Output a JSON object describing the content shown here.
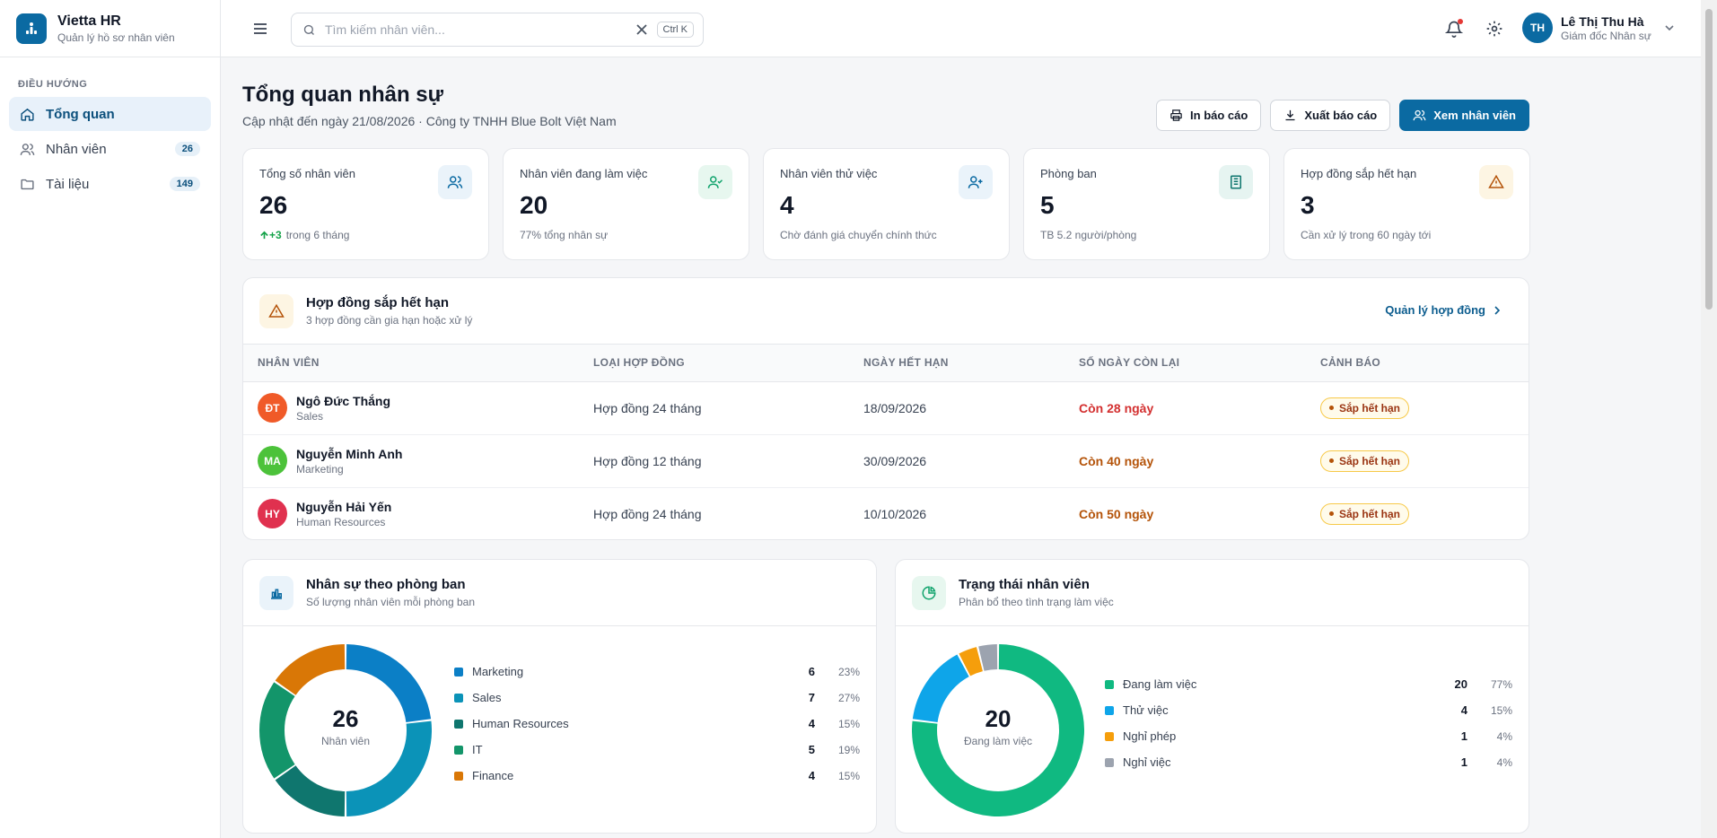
{
  "brand": {
    "name": "Vietta HR",
    "subtitle": "Quản lý hồ sơ nhân viên"
  },
  "sidebar": {
    "section": "ĐIỀU HƯỚNG",
    "items": [
      {
        "label": "Tổng quan",
        "icon": "home-icon",
        "badge": ""
      },
      {
        "label": "Nhân viên",
        "icon": "users-icon",
        "badge": "26"
      },
      {
        "label": "Tài liệu",
        "icon": "folder-icon",
        "badge": "149"
      }
    ]
  },
  "topbar": {
    "search_placeholder": "Tìm kiếm nhân viên...",
    "search_value": "",
    "shortcut": "Ctrl K",
    "user": {
      "initials": "TH",
      "name": "Lê Thị Thu Hà",
      "role": "Giám đốc Nhân sự"
    }
  },
  "page": {
    "title": "Tổng quan nhân sự",
    "subtitle": "Cập nhật đến ngày 21/08/2026 · Công ty TNHH Blue Bolt Việt Nam",
    "actions": {
      "print": "In báo cáo",
      "export": "Xuất báo cáo",
      "view": "Xem nhân viên"
    }
  },
  "stats": [
    {
      "label": "Tổng số nhân viên",
      "value": "26",
      "delta": "+3",
      "foot": "trong 6 tháng",
      "icon": "users-icon",
      "color": "#0b6aa2"
    },
    {
      "label": "Nhân viên đang làm việc",
      "value": "20",
      "foot": "77% tổng nhân sự",
      "icon": "user-check-icon",
      "color": "#10a36c"
    },
    {
      "label": "Nhân viên thử việc",
      "value": "4",
      "foot": "Chờ đánh giá chuyển chính thức",
      "icon": "user-plus-icon",
      "color": "#0b6aa2"
    },
    {
      "label": "Phòng ban",
      "value": "5",
      "foot": "TB 5.2 người/phòng",
      "icon": "building-icon",
      "color": "#0f766e"
    },
    {
      "label": "Hợp đồng sắp hết hạn",
      "value": "3",
      "foot": "Cần xử lý trong 60 ngày tới",
      "icon": "alert-triangle-icon",
      "color": "#b45309"
    }
  ],
  "contracts": {
    "title": "Hợp đồng sắp hết hạn",
    "subtitle": "3 hợp đồng cần gia hạn hoặc xử lý",
    "link": "Quản lý hợp đồng",
    "columns": [
      "NHÂN VIÊN",
      "LOẠI HỢP ĐỒNG",
      "NGÀY HẾT HẠN",
      "SỐ NGÀY CÒN LẠI",
      "CẢNH BÁO"
    ],
    "rows": [
      {
        "initials": "ĐT",
        "avatar_color": "#f05a28",
        "name": "Ngô Đức Thắng",
        "dept": "Sales",
        "type": "Hợp đồng 24 tháng",
        "date": "18/09/2026",
        "remaining": "Còn 28 ngày",
        "remaining_color": "#d32f2f",
        "warning": "Sắp hết hạn"
      },
      {
        "initials": "MA",
        "avatar_color": "#4cc23a",
        "name": "Nguyễn Minh Anh",
        "dept": "Marketing",
        "type": "Hợp đồng 12 tháng",
        "date": "30/09/2026",
        "remaining": "Còn 40 ngày",
        "remaining_color": "#b45309",
        "warning": "Sắp hết hạn"
      },
      {
        "initials": "HY",
        "avatar_color": "#e0314f",
        "name": "Nguyễn Hải Yến",
        "dept": "Human Resources",
        "type": "Hợp đồng 24 tháng",
        "date": "10/10/2026",
        "remaining": "Còn 50 ngày",
        "remaining_color": "#b45309",
        "warning": "Sắp hết hạn"
      }
    ]
  },
  "departments": {
    "title": "Nhân sự theo phòng ban",
    "subtitle": "Số lượng nhân viên mỗi phòng ban",
    "center_value": "26",
    "center_label": "Nhân viên",
    "items": [
      {
        "name": "Marketing",
        "count": 6,
        "pct": "23%",
        "color": "#0b7fc6"
      },
      {
        "name": "Sales",
        "count": 7,
        "pct": "27%",
        "color": "#0b93b8"
      },
      {
        "name": "Human Resources",
        "count": 4,
        "pct": "15%",
        "color": "#0f766e"
      },
      {
        "name": "IT",
        "count": 5,
        "pct": "19%",
        "color": "#13956a"
      },
      {
        "name": "Finance",
        "count": 4,
        "pct": "15%",
        "color": "#d97706"
      }
    ]
  },
  "status": {
    "title": "Trạng thái nhân viên",
    "subtitle": "Phân bổ theo tình trạng làm việc",
    "center_value": "20",
    "center_label": "Đang làm việc",
    "items": [
      {
        "name": "Đang làm việc",
        "count": 20,
        "pct": "77%",
        "color": "#10b981"
      },
      {
        "name": "Thử việc",
        "count": 4,
        "pct": "15%",
        "color": "#0ea5e9"
      },
      {
        "name": "Nghỉ phép",
        "count": 1,
        "pct": "4%",
        "color": "#f59e0b"
      },
      {
        "name": "Nghỉ việc",
        "count": 1,
        "pct": "4%",
        "color": "#9ca3af"
      }
    ]
  }
}
